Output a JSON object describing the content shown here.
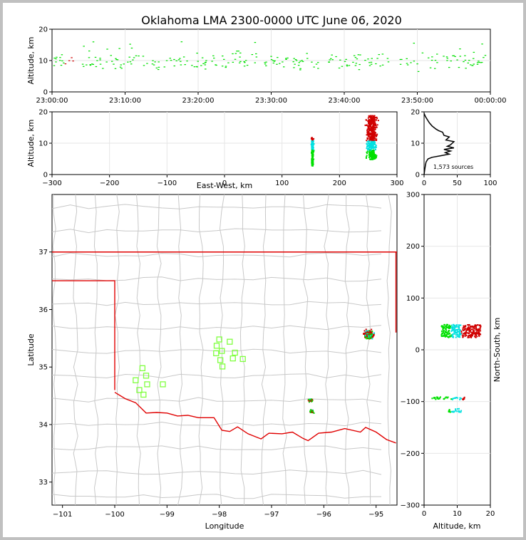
{
  "title": "Oklahoma LMA 2300-0000 UTC June 06, 2020",
  "colors": {
    "source_low": "#00e000",
    "source_mid": "#00e0e0",
    "source_high": "#d00000",
    "state_border": "#e00000",
    "county_lines": "#c8c8c8",
    "stations": "#80ff40",
    "profile": "#000000"
  },
  "chart_data": [
    {
      "id": "time_height",
      "type": "scatter",
      "ylabel": "Altitude, km",
      "ylim": [
        0,
        20
      ],
      "yticks": [
        "0",
        "10",
        "20"
      ],
      "xticks": [
        "23:00:00",
        "23:10:00",
        "23:20:00",
        "23:30:00",
        "23:40:00",
        "23:50:00",
        "00:00:00"
      ],
      "x_range_minutes": [
        0,
        60
      ],
      "grid": true
    },
    {
      "id": "ew_height",
      "type": "scatter",
      "xlabel": "East-West, km",
      "ylabel": "Altitude, km",
      "xlim": [
        -300,
        300
      ],
      "ylim": [
        0,
        20
      ],
      "xticks": [
        "−300",
        "−200",
        "−100",
        "0",
        "100",
        "200",
        "300"
      ],
      "yticks": [
        "0",
        "10",
        "20"
      ],
      "clusters": [
        {
          "x_center": 152,
          "alt_range": [
            3,
            12
          ]
        },
        {
          "x_center": 255,
          "alt_range": [
            5,
            19
          ]
        }
      ],
      "grid": true
    },
    {
      "id": "height_hist",
      "type": "line",
      "xlim": [
        0,
        100
      ],
      "ylim": [
        0,
        20
      ],
      "xticks": [
        "0",
        "50",
        "100"
      ],
      "yticks": [
        "0",
        "10",
        "20"
      ],
      "annotation": "1,573 sources",
      "profile": [
        [
          0,
          19.5
        ],
        [
          2,
          18.5
        ],
        [
          5,
          17.5
        ],
        [
          8,
          16.5
        ],
        [
          12,
          15.5
        ],
        [
          18,
          14.5
        ],
        [
          22,
          14
        ],
        [
          28,
          13.5
        ],
        [
          30,
          12.5
        ],
        [
          38,
          12
        ],
        [
          33,
          11
        ],
        [
          45,
          10.5
        ],
        [
          40,
          9.5
        ],
        [
          35,
          9
        ],
        [
          45,
          8.5
        ],
        [
          30,
          8
        ],
        [
          40,
          7.5
        ],
        [
          32,
          7
        ],
        [
          38,
          6.5
        ],
        [
          25,
          6
        ],
        [
          12,
          5.5
        ],
        [
          6,
          5
        ],
        [
          3,
          4
        ],
        [
          2,
          3
        ],
        [
          1,
          1.5
        ],
        [
          0,
          0
        ]
      ],
      "grid": true
    },
    {
      "id": "plan_view",
      "type": "scatter",
      "xlabel": "Longitude",
      "ylabel": "Latitude",
      "xlim": [
        -101.2,
        -94.6
      ],
      "ylim": [
        32.6,
        38.0
      ],
      "xticks": [
        "−101",
        "−100",
        "−99",
        "−98",
        "−97",
        "−96",
        "−95"
      ],
      "yticks": [
        "33",
        "34",
        "35",
        "36",
        "37"
      ],
      "stations": [
        [
          -98.0,
          35.48
        ],
        [
          -97.8,
          35.44
        ],
        [
          -98.05,
          35.37
        ],
        [
          -97.95,
          35.28
        ],
        [
          -98.06,
          35.24
        ],
        [
          -97.7,
          35.25
        ],
        [
          -97.55,
          35.14
        ],
        [
          -97.74,
          35.15
        ],
        [
          -97.98,
          35.12
        ],
        [
          -97.94,
          35.01
        ],
        [
          -99.47,
          34.98
        ],
        [
          -99.4,
          34.85
        ],
        [
          -99.6,
          34.77
        ],
        [
          -99.38,
          34.7
        ],
        [
          -99.08,
          34.7
        ],
        [
          -99.53,
          34.6
        ],
        [
          -99.45,
          34.52
        ]
      ],
      "clusters": [
        {
          "lon": -95.15,
          "lat": 35.58
        },
        {
          "lon": -96.27,
          "lat": 34.43
        },
        {
          "lon": -96.24,
          "lat": 34.24
        }
      ]
    },
    {
      "id": "ns_height",
      "type": "scatter",
      "xlabel": "Altitude, km",
      "ylabel": "North-South, km",
      "xlim": [
        0,
        20
      ],
      "ylim": [
        -300,
        300
      ],
      "xticks": [
        "0",
        "10",
        "20"
      ],
      "yticks": [
        "−300",
        "−200",
        "−100",
        "0",
        "100",
        "200",
        "300"
      ],
      "clusters": [
        {
          "ns_range": [
            25,
            50
          ],
          "alt_range": [
            5,
            17
          ]
        },
        {
          "ns_range": [
            -95,
            -90
          ],
          "alt_range": [
            2,
            12
          ]
        },
        {
          "ns_range": [
            -120,
            -112
          ],
          "alt_range": [
            7,
            11
          ]
        }
      ],
      "grid": true
    }
  ]
}
